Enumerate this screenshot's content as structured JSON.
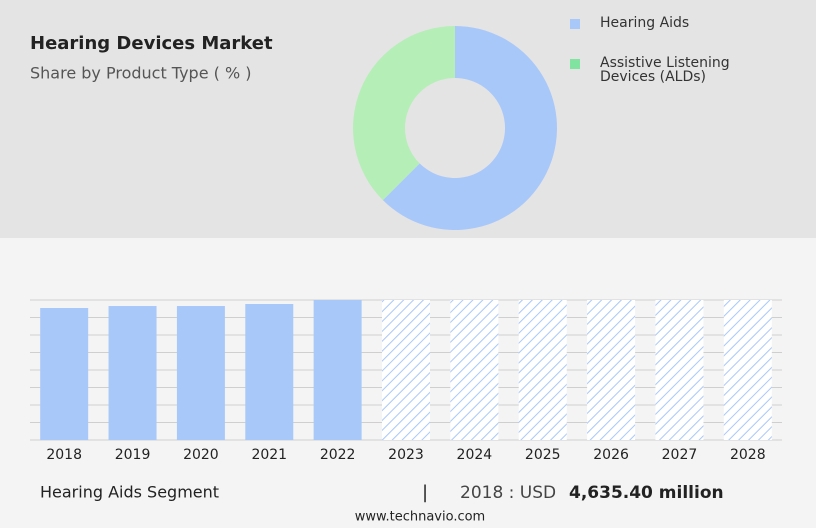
{
  "chart_data": [
    {
      "type": "pie",
      "title": "Hearing Devices Market",
      "subtitle": "Share by Product Type ( % )",
      "categories": [
        "Hearing Aids",
        "Assistive Listening Devices (ALDs)"
      ],
      "values": [
        62.5,
        37.5
      ],
      "colors": [
        "#a9c8fa",
        "#b6eeb8"
      ],
      "legend_colors": [
        "#a9c8fa",
        "#80e4a0"
      ],
      "donut": true
    },
    {
      "type": "bar",
      "categories": [
        "2018",
        "2019",
        "2020",
        "2021",
        "2022",
        "2023",
        "2024",
        "2025",
        "2026",
        "2027",
        "2028"
      ],
      "values": [
        4635.4,
        4705,
        4705,
        4776,
        4916,
        null,
        null,
        null,
        null,
        null,
        null
      ],
      "color": "#a9c8fa",
      "ylim": [
        0,
        4916
      ],
      "yticks": [
        0,
        614.5,
        1229,
        1843.5,
        2458,
        3072.5,
        3687,
        4301.5,
        4916
      ],
      "grid": true
    }
  ],
  "footer": {
    "segment": "Hearing Aids Segment",
    "separator": "|",
    "year_label": "2018 : USD",
    "value_label": "4,635.40 million"
  },
  "source": "www.technavio.com"
}
